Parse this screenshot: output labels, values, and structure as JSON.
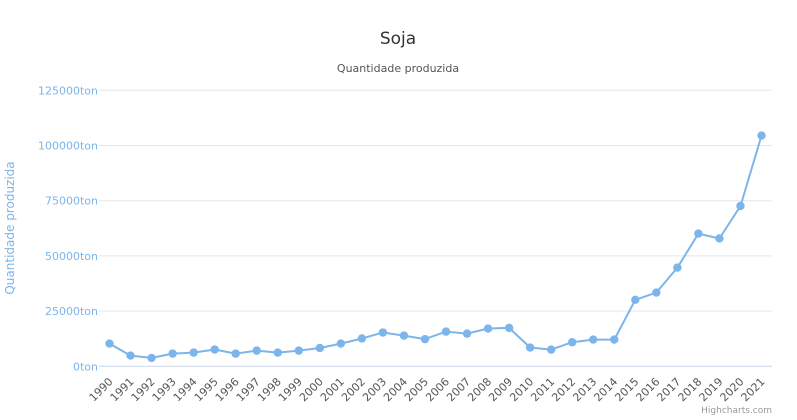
{
  "chart_data": {
    "type": "line",
    "title": "Soja",
    "subtitle": "Quantidade produzida",
    "xlabel": "",
    "ylabel": "Quantidade produzida",
    "ylim": [
      0,
      125000
    ],
    "yticks": [
      0,
      25000,
      50000,
      75000,
      100000,
      125000
    ],
    "ytick_labels": [
      "0ton",
      "25000ton",
      "50000ton",
      "75000ton",
      "100000ton",
      "125000ton"
    ],
    "grid": true,
    "categories": [
      "1990",
      "1991",
      "1992",
      "1993",
      "1994",
      "1995",
      "1996",
      "1997",
      "1998",
      "1999",
      "2000",
      "2001",
      "2002",
      "2003",
      "2004",
      "2005",
      "2006",
      "2007",
      "2008",
      "2009",
      "2010",
      "2011",
      "2012",
      "2013",
      "2014",
      "2015",
      "2016",
      "2017",
      "2018",
      "2019",
      "2020",
      "2021"
    ],
    "series": [
      {
        "name": "Quantidade produzida",
        "color": "#7cb5ec",
        "values": [
          10300,
          4850,
          3800,
          5750,
          6200,
          7600,
          5750,
          7100,
          6200,
          7100,
          8300,
          10300,
          12600,
          15300,
          13900,
          12300,
          15700,
          14800,
          17100,
          17400,
          8500,
          7550,
          10900,
          12100,
          12100,
          30100,
          33400,
          44700,
          60100,
          57900,
          72600,
          104500
        ]
      }
    ],
    "credit": "Highcharts.com"
  }
}
